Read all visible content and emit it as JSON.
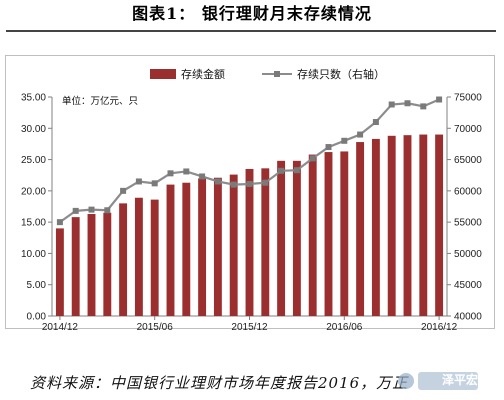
{
  "figure": {
    "title": "图表1：  银行理财月末存续情况",
    "source": "资料来源：中国银行业理财市场年度报告2016，万正",
    "watermark": "泽平宏观"
  },
  "colors": {
    "bar": "#9b2f2f",
    "line": "#8c8c8c",
    "marker": "#7a7a7a"
  },
  "chart_data": {
    "type": "bar",
    "unit_note": "单位：万亿元、只",
    "categories": [
      "2014/12",
      "2015/01",
      "2015/02",
      "2015/03",
      "2015/04",
      "2015/05",
      "2015/06",
      "2015/07",
      "2015/08",
      "2015/09",
      "2015/10",
      "2015/11",
      "2015/12",
      "2016/01",
      "2016/02",
      "2016/03",
      "2016/04",
      "2016/05",
      "2016/06",
      "2016/07",
      "2016/08",
      "2016/09",
      "2016/10",
      "2016/11",
      "2016/12"
    ],
    "x_tick_labels": [
      "2014/12",
      "2015/06",
      "2015/12",
      "2016/06",
      "2016/12"
    ],
    "series": [
      {
        "name": "存续金额",
        "type": "bar",
        "axis": "left",
        "values": [
          14.0,
          15.8,
          16.3,
          16.5,
          18.0,
          18.9,
          18.6,
          21.0,
          21.3,
          22.0,
          22.1,
          22.6,
          23.5,
          23.6,
          24.8,
          24.8,
          25.8,
          26.2,
          26.3,
          27.8,
          28.3,
          28.8,
          28.9,
          29.0,
          29.0
        ]
      },
      {
        "name": "存续只数（右轴）",
        "type": "line",
        "axis": "right",
        "values": [
          55000,
          56800,
          57000,
          56900,
          60000,
          61500,
          61200,
          62800,
          63100,
          62300,
          61500,
          61000,
          61100,
          61300,
          63200,
          63300,
          65200,
          67000,
          68000,
          69000,
          71000,
          73800,
          74000,
          73500,
          74600
        ]
      }
    ],
    "y_left": {
      "min": 0,
      "max": 35,
      "ticks": [
        "0.00",
        "5.00",
        "10.00",
        "15.00",
        "20.00",
        "25.00",
        "30.00",
        "35.00"
      ]
    },
    "y_right": {
      "min": 40000,
      "max": 75000,
      "ticks": [
        "40000",
        "45000",
        "50000",
        "55000",
        "60000",
        "65000",
        "70000",
        "75000"
      ]
    },
    "legend_position": "top-center",
    "grid": false
  }
}
